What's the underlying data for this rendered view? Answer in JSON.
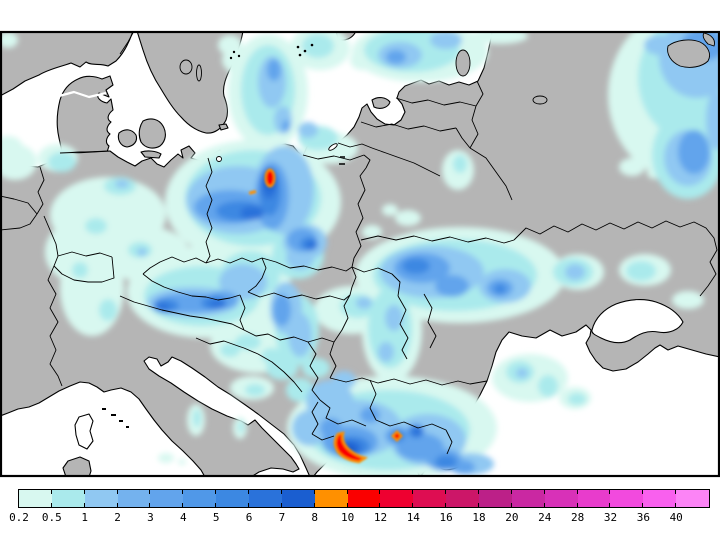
{
  "map": {
    "land_color": "#b5b5b5",
    "sea_color": "#ffffff",
    "coastline_color": "#000000",
    "frame_color": "#000000"
  },
  "colorbar": {
    "cells": [
      {
        "label": "0.2",
        "color": "#d8f8f0"
      },
      {
        "label": "0.5",
        "color": "#aaeaec"
      },
      {
        "label": "1",
        "color": "#90c8f2"
      },
      {
        "label": "2",
        "color": "#74b2ee"
      },
      {
        "label": "3",
        "color": "#62a4ec"
      },
      {
        "label": "4",
        "color": "#5098e8"
      },
      {
        "label": "5",
        "color": "#3c88e2"
      },
      {
        "label": "6",
        "color": "#2a72da"
      },
      {
        "label": "7",
        "color": "#1a5ed0"
      },
      {
        "label": "8",
        "color": "#ff9000"
      },
      {
        "label": "10",
        "color": "#fa0000"
      },
      {
        "label": "12",
        "color": "#ee0030"
      },
      {
        "label": "14",
        "color": "#de0d52"
      },
      {
        "label": "16",
        "color": "#cc1668"
      },
      {
        "label": "18",
        "color": "#bc2088"
      },
      {
        "label": "20",
        "color": "#ca28a2"
      },
      {
        "label": "24",
        "color": "#d831b8"
      },
      {
        "label": "28",
        "color": "#e83ccc"
      },
      {
        "label": "32",
        "color": "#f24ade"
      },
      {
        "label": "36",
        "color": "#f960ee"
      },
      {
        "label": "40",
        "color": "#fc84f6"
      }
    ]
  }
}
